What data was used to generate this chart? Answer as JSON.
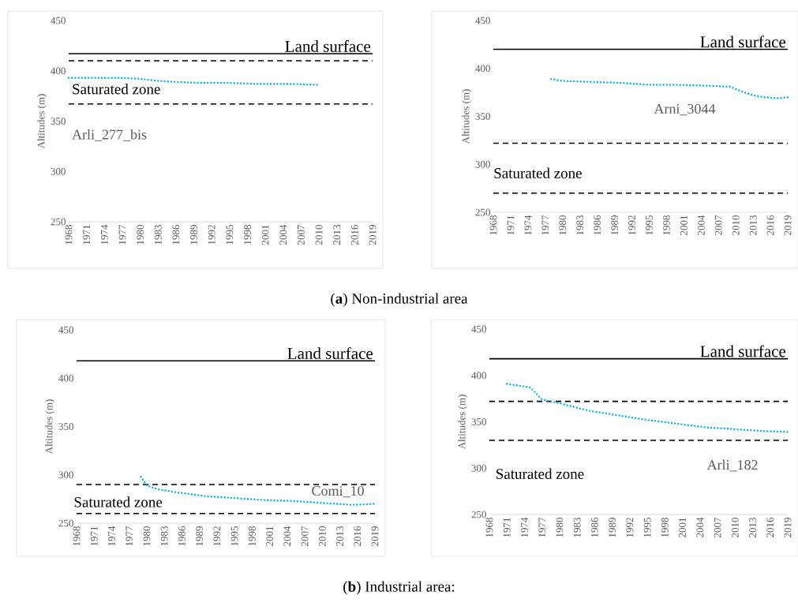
{
  "chart_data": [
    {
      "type": "line",
      "ylabel": "Altitudes (m)",
      "xlim": [
        1968,
        2019
      ],
      "xticks": [
        1968,
        1971,
        1974,
        1977,
        1980,
        1983,
        1986,
        1989,
        1992,
        1995,
        1998,
        2001,
        2004,
        2007,
        2010,
        2013,
        2016,
        2019
      ],
      "ylim": [
        250,
        450
      ],
      "yticks": [
        250,
        300,
        350,
        400,
        450
      ],
      "series": [
        {
          "color": "#00b0f0",
          "line_style": "dotted",
          "x": [
            1968,
            1977,
            1980,
            1983,
            1986,
            1990,
            1995,
            2000,
            2005,
            2010
          ],
          "values": [
            393,
            393,
            392,
            390,
            389,
            388,
            388,
            387,
            387,
            386
          ]
        }
      ],
      "ref_lines": [
        {
          "axis": "y",
          "value": 417,
          "label": "Land surface",
          "color": "#000000",
          "line_style": "solid"
        },
        {
          "axis": "y",
          "value": 410,
          "label": "Saturated zone",
          "color": "#000000",
          "line_style": "dashed"
        },
        {
          "axis": "y",
          "value": 367,
          "color": "#000000",
          "line_style": "dashed"
        }
      ],
      "annotations": [
        "Arli_277_bis",
        "(**a**) Non-industrial area"
      ]
    },
    {
      "type": "line",
      "ylabel": "Altitudes (m)",
      "xlim": [
        1968,
        2019
      ],
      "xticks": [
        1968,
        1971,
        1974,
        1977,
        1980,
        1983,
        1986,
        1989,
        1992,
        1995,
        1998,
        2001,
        2004,
        2007,
        2010,
        2013,
        2016,
        2019
      ],
      "ylim": [
        250,
        450
      ],
      "yticks": [
        250,
        300,
        350,
        400,
        450
      ],
      "series": [
        {
          "color": "#00b0f0",
          "line_style": "dotted",
          "x": [
            1978,
            1980,
            1985,
            1990,
            1995,
            2000,
            2005,
            2009,
            2011,
            2013,
            2015,
            2017,
            2019
          ],
          "values": [
            389,
            387,
            386,
            385,
            383,
            383,
            382,
            381,
            376,
            372,
            370,
            369,
            370
          ]
        }
      ],
      "ref_lines": [
        {
          "axis": "y",
          "value": 420,
          "label": "Land surface",
          "color": "#000000",
          "line_style": "solid"
        },
        {
          "axis": "y",
          "value": 322,
          "label": "Saturated zone",
          "color": "#000000",
          "line_style": "dashed"
        },
        {
          "axis": "y",
          "value": 270,
          "color": "#000000",
          "line_style": "dashed"
        }
      ],
      "annotations": [
        "Arni_3044"
      ]
    },
    {
      "type": "line",
      "ylabel": "Altitudes (m)",
      "xlim": [
        1968,
        2019
      ],
      "xticks": [
        1968,
        1971,
        1974,
        1977,
        1980,
        1983,
        1986,
        1989,
        1992,
        1995,
        1998,
        2001,
        2004,
        2007,
        2010,
        2013,
        2016,
        2019
      ],
      "ylim": [
        250,
        450
      ],
      "yticks": [
        250,
        300,
        350,
        400,
        450
      ],
      "series": [
        {
          "color": "#00b0f0",
          "line_style": "dotted",
          "x": [
            1979,
            1980,
            1982,
            1985,
            1990,
            1995,
            2000,
            2005,
            2010,
            2015,
            2019
          ],
          "values": [
            298,
            289,
            285,
            282,
            278,
            276,
            274,
            273,
            271,
            269,
            270
          ]
        }
      ],
      "ref_lines": [
        {
          "axis": "y",
          "value": 418,
          "label": "Land surface",
          "color": "#000000",
          "line_style": "solid"
        },
        {
          "axis": "y",
          "value": 290,
          "label": "Saturated zone",
          "color": "#000000",
          "line_style": "dashed"
        },
        {
          "axis": "y",
          "value": 260,
          "color": "#000000",
          "line_style": "dashed"
        }
      ],
      "annotations": [
        "Comi_10",
        "(**b**) Industrial area:"
      ]
    },
    {
      "type": "line",
      "ylabel": "Altitudes (m)",
      "xlim": [
        1968,
        2019
      ],
      "xticks": [
        1968,
        1971,
        1974,
        1977,
        1980,
        1983,
        1986,
        1989,
        1992,
        1995,
        1998,
        2001,
        2004,
        2007,
        2010,
        2013,
        2016,
        2019
      ],
      "ylim": [
        250,
        450
      ],
      "yticks": [
        250,
        300,
        350,
        400,
        450
      ],
      "series": [
        {
          "color": "#00b0f0",
          "line_style": "dotted",
          "x": [
            1971,
            1975,
            1977,
            1980,
            1985,
            1990,
            1995,
            2000,
            2005,
            2010,
            2015,
            2019
          ],
          "values": [
            391,
            387,
            374,
            370,
            362,
            357,
            352,
            348,
            344,
            342,
            340,
            339
          ]
        }
      ],
      "ref_lines": [
        {
          "axis": "y",
          "value": 418,
          "label": "Land surface",
          "color": "#000000",
          "line_style": "solid"
        },
        {
          "axis": "y",
          "value": 372,
          "color": "#000000",
          "line_style": "dashed"
        },
        {
          "axis": "y",
          "value": 330,
          "label": "Saturated zone",
          "color": "#000000",
          "line_style": "dashed"
        }
      ],
      "annotations": [
        "Arli_182"
      ]
    }
  ]
}
